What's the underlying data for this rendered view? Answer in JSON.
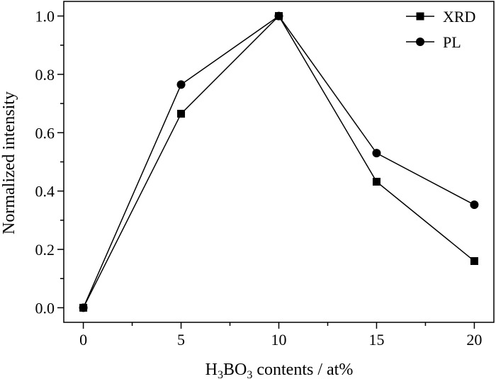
{
  "chart_data": {
    "type": "line",
    "x": [
      0,
      5,
      10,
      15,
      20
    ],
    "series": [
      {
        "name": "XRD",
        "marker": "square",
        "values": [
          0.0,
          0.665,
          1.0,
          0.432,
          0.16
        ]
      },
      {
        "name": "PL",
        "marker": "circle",
        "values": [
          0.0,
          0.765,
          1.0,
          0.53,
          0.353
        ]
      }
    ],
    "xlabel": {
      "parts": [
        {
          "text": "H",
          "sub": false
        },
        {
          "text": "3",
          "sub": true
        },
        {
          "text": "BO",
          "sub": false
        },
        {
          "text": "3",
          "sub": true
        },
        {
          "text": " contents / at%",
          "sub": false
        }
      ]
    },
    "ylabel": "Normalized intensity",
    "xlim": [
      -1,
      21
    ],
    "ylim": [
      -0.05,
      1.05
    ],
    "xticks": [
      0,
      5,
      10,
      15,
      20
    ],
    "xticks_minor": [
      2.5,
      7.5,
      12.5,
      17.5
    ],
    "xtick_labels": [
      "0",
      "5",
      "10",
      "15",
      "20"
    ],
    "yticks": [
      0.0,
      0.2,
      0.4,
      0.6,
      0.8,
      1.0
    ],
    "yticks_minor": [
      0.1,
      0.3,
      0.5,
      0.7,
      0.9
    ],
    "ytick_labels": [
      "0.0",
      "0.2",
      "0.4",
      "0.6",
      "0.8",
      "1.0"
    ],
    "legend": "top-right",
    "grid": false,
    "colors": {
      "line": "#000000",
      "marker": "#000000"
    }
  }
}
